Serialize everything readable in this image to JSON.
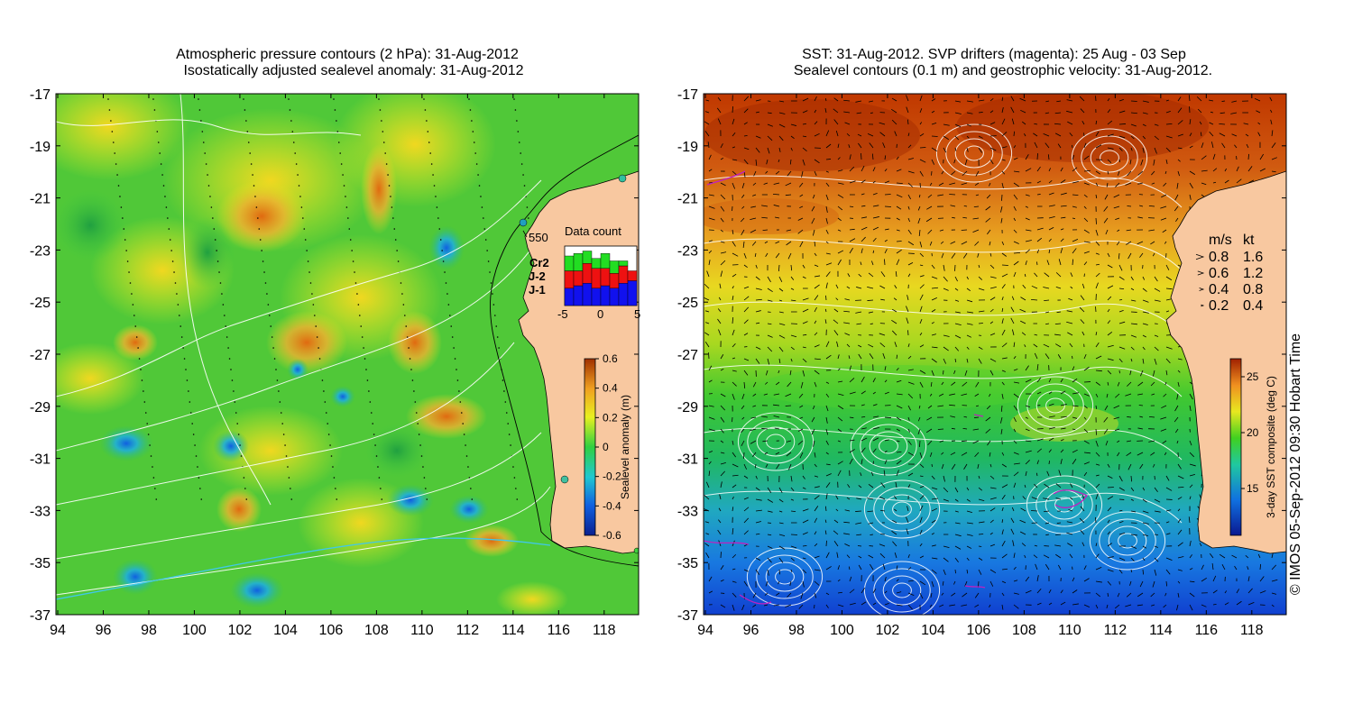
{
  "left_panel": {
    "title_line1": "Atmospheric pressure contours (2 hPa): 31-Aug-2012",
    "title_line2": "Isostatically adjusted sealevel anomaly: 31-Aug-2012",
    "x_ticks": [
      "94",
      "96",
      "98",
      "100",
      "102",
      "104",
      "106",
      "108",
      "110",
      "112",
      "114",
      "116",
      "118"
    ],
    "y_ticks": [
      "-17",
      "-19",
      "-21",
      "-23",
      "-25",
      "-27",
      "-29",
      "-31",
      "-33",
      "-35",
      "-37"
    ],
    "depth_label": "550",
    "inset": {
      "title": "Data count",
      "legend": [
        {
          "label": "Cr2",
          "color": "#22dd22"
        },
        {
          "label": "J-2",
          "color": "#ee1111"
        },
        {
          "label": "J-1",
          "color": "#1111ee"
        }
      ],
      "x_ticks": [
        "-5",
        "0",
        "5"
      ],
      "bars": [
        {
          "j1": 0.35,
          "j2": 0.35,
          "cr2": 0.3
        },
        {
          "j1": 0.4,
          "j2": 0.3,
          "cr2": 0.35
        },
        {
          "j1": 0.45,
          "j2": 0.4,
          "cr2": 0.25
        },
        {
          "j1": 0.35,
          "j2": 0.4,
          "cr2": 0.2
        },
        {
          "j1": 0.4,
          "j2": 0.35,
          "cr2": 0.3
        },
        {
          "j1": 0.35,
          "j2": 0.3,
          "cr2": 0.25
        },
        {
          "j1": 0.45,
          "j2": 0.35,
          "cr2": 0.1
        },
        {
          "j1": 0.5,
          "j2": 0.2,
          "cr2": 0.0
        }
      ]
    },
    "colorbar": {
      "label": "Sealevel anomaly (m)",
      "ticks": [
        "0.6",
        "0.4",
        "0.2",
        "0",
        "-0.2",
        "-0.4",
        "-0.6"
      ]
    }
  },
  "right_panel": {
    "title_line1": "SST: 31-Aug-2012. SVP drifters (magenta): 25 Aug - 03 Sep",
    "title_line2": "Sealevel contours (0.1 m) and geostrophic velocity: 31-Aug-2012.",
    "x_ticks": [
      "94",
      "96",
      "98",
      "100",
      "102",
      "104",
      "106",
      "108",
      "110",
      "112",
      "114",
      "116",
      "118"
    ],
    "y_ticks": [
      "-17",
      "-19",
      "-21",
      "-23",
      "-25",
      "-27",
      "-29",
      "-31",
      "-33",
      "-35",
      "-37"
    ],
    "speed_legend": {
      "header_ms": "m/s",
      "header_kt": "kt",
      "rows": [
        {
          "ms": "0.8",
          "kt": "1.6"
        },
        {
          "ms": "0.6",
          "kt": "1.2"
        },
        {
          "ms": "0.4",
          "kt": "0.8"
        },
        {
          "ms": "0.2",
          "kt": "0.4"
        }
      ]
    },
    "colorbar": {
      "label": "3-day SST composite (deg C)",
      "ticks": [
        "25",
        "20",
        "15"
      ]
    }
  },
  "credit": "© IMOS 05-Sep-2012 09:30 Hobart Time",
  "colors": {
    "land": "#f8c8a0",
    "sst_warm": "#c83c00",
    "sst_cold": "#0050c8",
    "sla_high": "#c85000",
    "sla_low": "#0a50c8"
  }
}
